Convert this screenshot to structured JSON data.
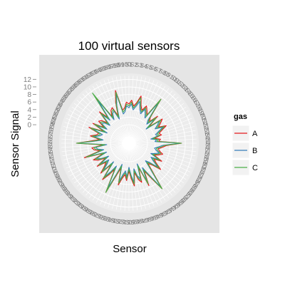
{
  "chart_data": {
    "type": "radar",
    "title": "100 virtual sensors",
    "xlabel": "Sensor",
    "ylabel": "Sensor Signal",
    "ylim": [
      -3,
      13
    ],
    "y_ticks": [
      0,
      2,
      4,
      6,
      8,
      10,
      12
    ],
    "grid": true,
    "legend": {
      "title": "gas",
      "placement": "right"
    },
    "categories": [
      "S1",
      "S2",
      "S3",
      "S4",
      "S5",
      "S6",
      "S7",
      "S8",
      "S9",
      "S10",
      "S11",
      "S12",
      "S13",
      "S14",
      "S15",
      "S16",
      "S17",
      "S18",
      "S19",
      "S20",
      "S21",
      "S22",
      "S23",
      "S24",
      "S25",
      "S26",
      "S27",
      "S28",
      "S29",
      "S30",
      "S31",
      "S32",
      "S33",
      "S34",
      "S35",
      "S36",
      "S37",
      "S38",
      "S39",
      "S40",
      "S41",
      "S42",
      "S43",
      "S44",
      "S45",
      "S46",
      "S47",
      "S48",
      "S49",
      "S50",
      "S51",
      "S52",
      "S53",
      "S54",
      "S55",
      "S56",
      "S57",
      "S58",
      "S59",
      "S60",
      "S61",
      "S62",
      "S63",
      "S64",
      "S65",
      "S66",
      "S67",
      "S68",
      "S69",
      "S70",
      "S71",
      "S72",
      "S73",
      "S74",
      "S75",
      "S76",
      "S77",
      "S78",
      "S79",
      "S80",
      "S81",
      "S82",
      "S83",
      "S84",
      "S85",
      "S86",
      "S87",
      "S88",
      "S89",
      "S90",
      "S91",
      "S92",
      "S93",
      "S94",
      "S95",
      "S96",
      "S97",
      "S98",
      "S99",
      "S100"
    ],
    "series": [
      {
        "name": "A",
        "color": "#e41a1c",
        "values": [
          5.5,
          6.5,
          5.0,
          6.0,
          8.0,
          5.5,
          4.5,
          6.0,
          5.0,
          4.0,
          9.5,
          4.0,
          3.0,
          5.5,
          2.0,
          6.0,
          5.0,
          4.0,
          6.0,
          4.5,
          3.5,
          4.0,
          2.0,
          3.5,
          3.0,
          9.0,
          5.0,
          4.0,
          3.0,
          3.5,
          4.5,
          3.5,
          2.5,
          5.0,
          3.0,
          4.0,
          6.0,
          3.5,
          2.5,
          5.0,
          10.0,
          6.0,
          3.5,
          7.5,
          2.0,
          6.0,
          5.0,
          3.0,
          6.5,
          4.5,
          2.5,
          5.0,
          3.5,
          4.5,
          6.5,
          2.0,
          4.5,
          9.5,
          3.0,
          5.0,
          7.0,
          2.5,
          6.0,
          4.0,
          3.0,
          5.5,
          2.5,
          4.5,
          5.5,
          2.5,
          7.5,
          3.0,
          4.5,
          5.0,
          2.0,
          9.0,
          5.0,
          3.0,
          5.5,
          4.0,
          3.5,
          6.5,
          2.5,
          6.0,
          3.0,
          5.0,
          4.5,
          3.0,
          6.5,
          4.0,
          10.0,
          3.5,
          5.0,
          5.5,
          3.0,
          6.5,
          9.5,
          4.0,
          4.5,
          6.0
        ]
      },
      {
        "name": "B",
        "color": "#377eb8",
        "values": [
          4.5,
          5.5,
          4.0,
          5.0,
          6.5,
          4.5,
          3.5,
          5.0,
          4.0,
          3.0,
          8.5,
          3.0,
          2.0,
          4.5,
          1.0,
          5.0,
          4.0,
          3.0,
          5.0,
          3.5,
          2.5,
          3.0,
          1.0,
          2.5,
          2.0,
          8.5,
          4.0,
          3.0,
          2.0,
          2.5,
          3.5,
          2.5,
          1.5,
          4.0,
          2.0,
          3.0,
          5.0,
          2.5,
          1.5,
          4.0,
          9.5,
          5.0,
          2.5,
          6.5,
          1.0,
          5.0,
          4.0,
          2.0,
          5.5,
          3.5,
          1.5,
          4.0,
          2.5,
          3.5,
          5.5,
          1.0,
          3.5,
          8.5,
          2.0,
          4.0,
          6.0,
          1.5,
          5.0,
          3.0,
          2.0,
          4.5,
          1.5,
          3.5,
          4.5,
          1.5,
          6.5,
          2.0,
          3.5,
          4.0,
          1.0,
          8.5,
          4.0,
          2.0,
          4.5,
          3.0,
          2.5,
          5.5,
          1.5,
          5.0,
          2.0,
          4.0,
          3.5,
          2.0,
          5.5,
          3.0,
          9.0,
          2.5,
          4.0,
          4.5,
          2.0,
          5.5,
          8.5,
          3.0,
          3.5,
          5.0
        ]
      },
      {
        "name": "C",
        "color": "#4daf4a",
        "values": [
          5.0,
          6.0,
          4.5,
          5.5,
          7.5,
          5.0,
          4.0,
          5.5,
          4.5,
          3.5,
          9.5,
          3.5,
          2.5,
          5.0,
          1.5,
          5.5,
          4.5,
          3.5,
          5.5,
          4.0,
          3.0,
          3.5,
          1.5,
          3.0,
          2.5,
          9.0,
          4.5,
          3.5,
          2.5,
          3.0,
          4.0,
          3.0,
          2.0,
          4.5,
          2.5,
          3.5,
          5.5,
          3.0,
          2.0,
          4.5,
          10.0,
          5.5,
          3.0,
          7.0,
          1.5,
          5.5,
          4.5,
          2.5,
          6.0,
          4.0,
          2.0,
          4.5,
          3.0,
          4.0,
          6.0,
          1.5,
          4.0,
          9.5,
          2.5,
          4.5,
          6.5,
          2.0,
          5.5,
          3.5,
          2.5,
          5.0,
          2.0,
          4.0,
          5.0,
          2.0,
          7.0,
          2.5,
          4.0,
          4.5,
          1.5,
          9.0,
          4.5,
          2.5,
          5.0,
          3.5,
          3.0,
          6.0,
          2.0,
          5.5,
          2.5,
          4.5,
          4.0,
          2.5,
          6.0,
          3.5,
          11.5,
          3.0,
          4.5,
          5.0,
          2.5,
          6.0,
          9.0,
          3.5,
          4.0,
          5.5
        ]
      }
    ]
  }
}
